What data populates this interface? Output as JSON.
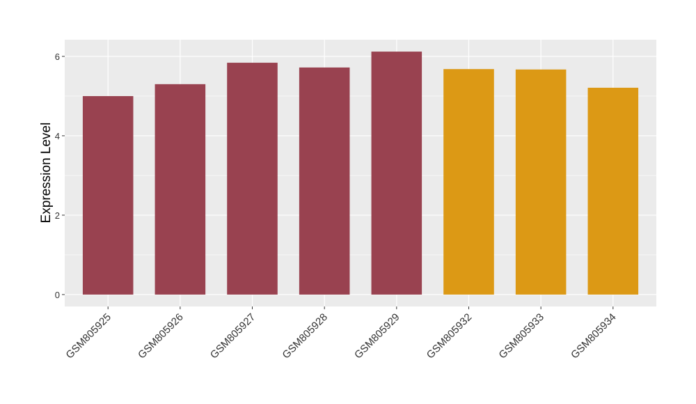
{
  "chart_data": {
    "type": "bar",
    "y_label": "Expression Level",
    "categories": [
      "GSM805925",
      "GSM805926",
      "GSM805927",
      "GSM805928",
      "GSM805929",
      "GSM805932",
      "GSM805933",
      "GSM805934"
    ],
    "values": [
      5.0,
      5.3,
      5.84,
      5.72,
      6.12,
      5.68,
      5.67,
      5.21
    ],
    "colors": [
      "#994250",
      "#994250",
      "#994250",
      "#994250",
      "#994250",
      "#dc9915",
      "#dc9915",
      "#dc9915"
    ],
    "ylim": [
      -0.3,
      6.42
    ],
    "yticks": [
      0,
      2,
      4,
      6
    ],
    "minor_yticks": [
      1,
      3,
      5
    ],
    "grid": true
  }
}
